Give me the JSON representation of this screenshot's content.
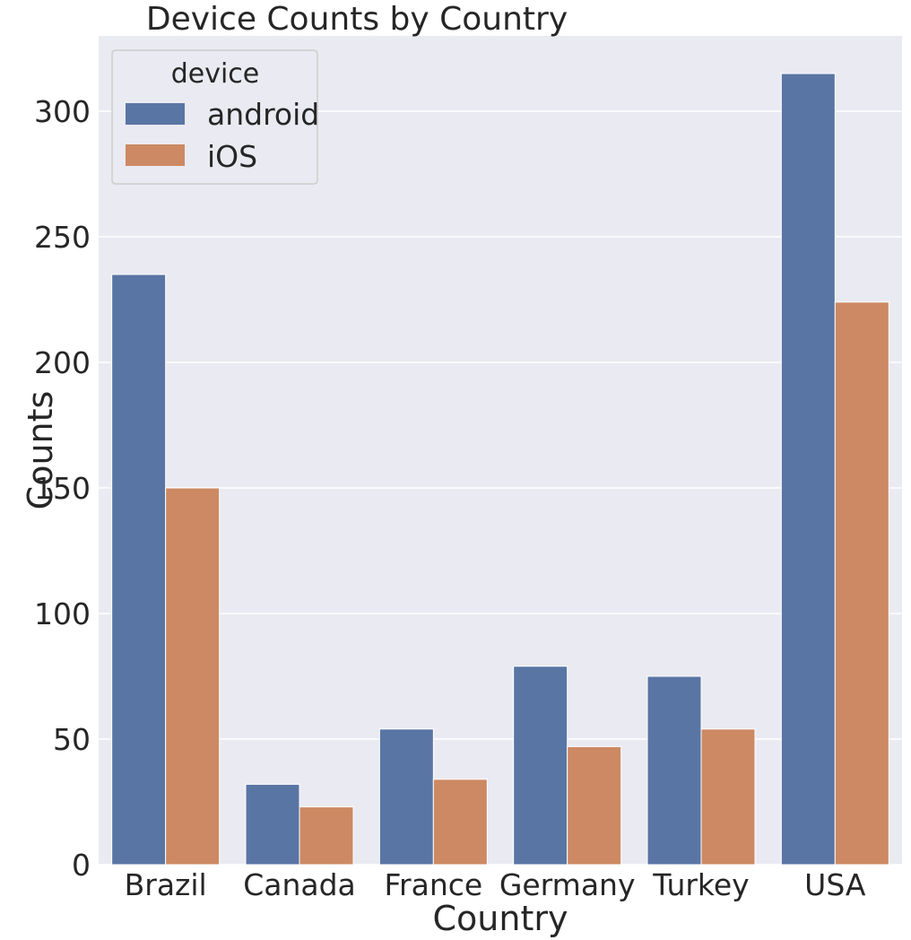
{
  "chart_data": {
    "type": "bar",
    "title": "Device Counts by Country",
    "xlabel": "Country",
    "ylabel": "Counts",
    "categories": [
      "Brazil",
      "Canada",
      "France",
      "Germany",
      "Turkey",
      "USA"
    ],
    "series": [
      {
        "name": "android",
        "color": "#5975a4",
        "values": [
          235,
          32,
          54,
          79,
          75,
          315
        ]
      },
      {
        "name": "iOS",
        "color": "#cc8963",
        "values": [
          150,
          23,
          34,
          47,
          54,
          224
        ]
      }
    ],
    "ylim": [
      0,
      330
    ],
    "yticks": [
      0,
      50,
      100,
      150,
      200,
      250,
      300
    ],
    "legend": {
      "title": "device",
      "position": "upper-left"
    },
    "grid": true,
    "background": "#eaeaf2"
  }
}
